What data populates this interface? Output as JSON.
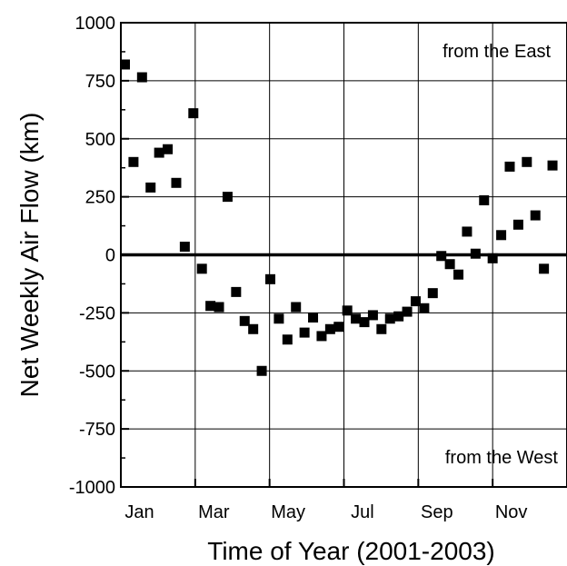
{
  "chart_data": {
    "type": "scatter",
    "title": "",
    "xlabel": "Time of Year (2001-2003)",
    "ylabel": "Net Weekly Air Flow (km)",
    "xlim": [
      0,
      12
    ],
    "ylim": [
      -1000,
      1000
    ],
    "grid": true,
    "zero_line": 0,
    "x_ticks": [
      {
        "value": 0.5,
        "label": "Jan"
      },
      {
        "value": 2.5,
        "label": "Mar"
      },
      {
        "value": 4.5,
        "label": "May"
      },
      {
        "value": 6.5,
        "label": "Jul"
      },
      {
        "value": 8.5,
        "label": "Sep"
      },
      {
        "value": 10.5,
        "label": "Nov"
      }
    ],
    "x_gridlines": [
      2,
      4,
      6,
      8,
      10
    ],
    "y_ticks": [
      {
        "value": 1000,
        "label": "1000"
      },
      {
        "value": 750,
        "label": "750"
      },
      {
        "value": 500,
        "label": "500"
      },
      {
        "value": 250,
        "label": "250"
      },
      {
        "value": 0,
        "label": "0"
      },
      {
        "value": -250,
        "label": "-250"
      },
      {
        "value": -500,
        "label": "-500"
      },
      {
        "value": -750,
        "label": "-750"
      },
      {
        "value": -1000,
        "label": "-1000"
      }
    ],
    "annotations": [
      {
        "text": "from the East",
        "position": "top-right"
      },
      {
        "text": "from the West",
        "position": "bottom-right"
      }
    ],
    "marker_color": "#000000",
    "points": [
      [
        0.11,
        820
      ],
      [
        0.34,
        400
      ],
      [
        0.57,
        765
      ],
      [
        0.8,
        290
      ],
      [
        1.03,
        440
      ],
      [
        1.26,
        455
      ],
      [
        1.49,
        310
      ],
      [
        1.72,
        35
      ],
      [
        1.95,
        610
      ],
      [
        2.18,
        -60
      ],
      [
        2.41,
        -220
      ],
      [
        2.64,
        -225
      ],
      [
        2.87,
        250
      ],
      [
        3.1,
        -160
      ],
      [
        3.33,
        -285
      ],
      [
        3.56,
        -320
      ],
      [
        3.79,
        -500
      ],
      [
        4.02,
        -105
      ],
      [
        4.25,
        -275
      ],
      [
        4.48,
        -365
      ],
      [
        4.71,
        -225
      ],
      [
        4.94,
        -335
      ],
      [
        5.17,
        -270
      ],
      [
        5.4,
        -350
      ],
      [
        5.63,
        -320
      ],
      [
        5.86,
        -310
      ],
      [
        6.09,
        -240
      ],
      [
        6.32,
        -275
      ],
      [
        6.55,
        -290
      ],
      [
        6.78,
        -260
      ],
      [
        7.01,
        -320
      ],
      [
        7.24,
        -275
      ],
      [
        7.47,
        -265
      ],
      [
        7.7,
        -245
      ],
      [
        7.93,
        -200
      ],
      [
        8.16,
        -230
      ],
      [
        8.39,
        -165
      ],
      [
        8.62,
        -5
      ],
      [
        8.85,
        -40
      ],
      [
        9.08,
        -85
      ],
      [
        9.31,
        100
      ],
      [
        9.54,
        5
      ],
      [
        9.77,
        235
      ],
      [
        10.0,
        -15
      ],
      [
        10.23,
        85
      ],
      [
        10.46,
        380
      ],
      [
        10.69,
        130
      ],
      [
        10.92,
        400
      ],
      [
        11.15,
        170
      ],
      [
        11.38,
        -60
      ],
      [
        11.61,
        385
      ]
    ]
  }
}
